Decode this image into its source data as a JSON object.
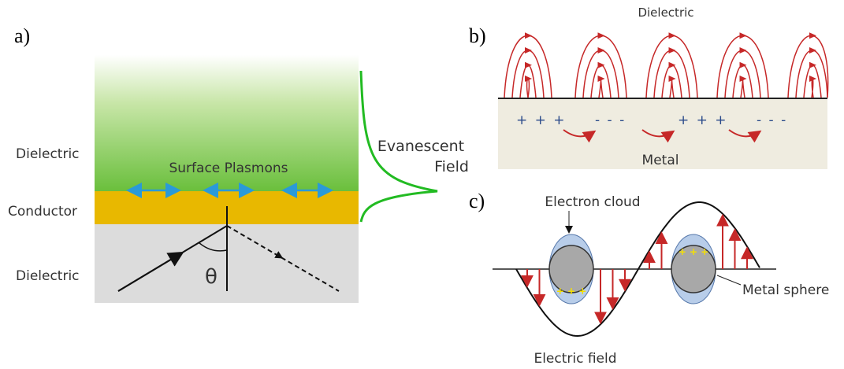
{
  "panel_a": {
    "label": "a)",
    "dielectric_top": "Dielectric",
    "conductor": "Conductor",
    "dielectric_bottom": "Dielectric",
    "surface_plasmons": "Surface Plasmons",
    "angle": "θ",
    "evanescent": "Evanescent",
    "field": "Field"
  },
  "panel_b": {
    "label": "b)",
    "dielectric": "Dielectric",
    "metal": "Metal",
    "charges": [
      "+ + +",
      "- - -",
      "+ + +",
      "- - -"
    ]
  },
  "panel_c": {
    "label": "c)",
    "electron_cloud": "Electron cloud",
    "metal_sphere": "Metal sphere",
    "electric_field": "Electric field",
    "sphere_charges": [
      "+ + +",
      "+ + +"
    ]
  }
}
